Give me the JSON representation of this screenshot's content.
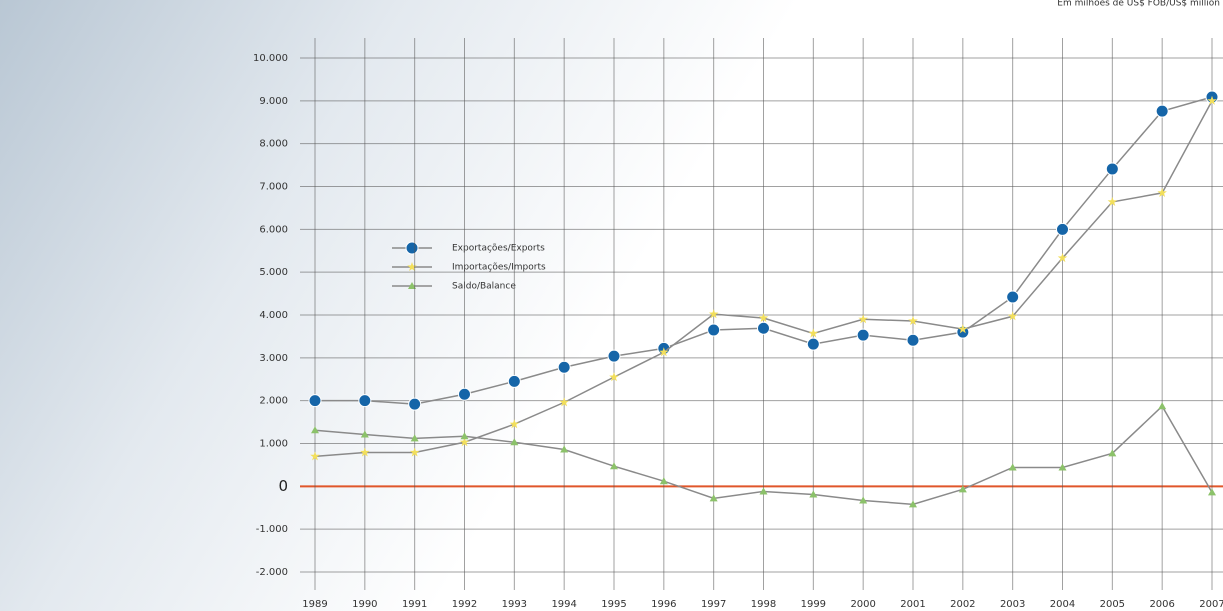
{
  "chart_data": {
    "type": "line",
    "subtitle": "Em milhões de US$ FOB/US$ million",
    "categories": [
      "1989",
      "1990",
      "1991",
      "1992",
      "1993",
      "1994",
      "1995",
      "1996",
      "1997",
      "1998",
      "1999",
      "2000",
      "2001",
      "2002",
      "2003",
      "2004",
      "2005",
      "2006",
      "2007"
    ],
    "series": [
      {
        "name": "Exportações/Exports",
        "color": "#1565a8",
        "marker": "circle",
        "values": [
          2000,
          2000,
          1920,
          2150,
          2450,
          2780,
          3040,
          3220,
          3650,
          3690,
          3320,
          3530,
          3410,
          3600,
          4420,
          6000,
          7410,
          8760,
          9090
        ]
      },
      {
        "name": "Importações/Imports",
        "color": "#f2df5c",
        "marker": "star",
        "values": [
          700,
          790,
          790,
          1030,
          1450,
          1960,
          2550,
          3130,
          4020,
          3930,
          3570,
          3900,
          3860,
          3670,
          3970,
          5330,
          6640,
          6850,
          9000
        ]
      },
      {
        "name": "Saldo/Balance",
        "color": "#8cc26a",
        "marker": "triangle",
        "values": [
          1310,
          1210,
          1120,
          1170,
          1030,
          860,
          470,
          120,
          -280,
          -120,
          -190,
          -330,
          -420,
          -70,
          440,
          440,
          770,
          1870,
          -140
        ]
      }
    ],
    "ylim": [
      -2000,
      10000
    ],
    "yticks": [
      {
        "value": 10000,
        "label": "10.000"
      },
      {
        "value": 9000,
        "label": "9.000"
      },
      {
        "value": 8000,
        "label": "8.000"
      },
      {
        "value": 7000,
        "label": "7.000"
      },
      {
        "value": 6000,
        "label": "6.000"
      },
      {
        "value": 5000,
        "label": "5.000"
      },
      {
        "value": 4000,
        "label": "4.000"
      },
      {
        "value": 3000,
        "label": "3.000"
      },
      {
        "value": 2000,
        "label": "2.000"
      },
      {
        "value": 1000,
        "label": "1.000"
      },
      0,
      {
        "value": -1000,
        "label": "-1.000"
      },
      {
        "value": -2000,
        "label": "-2.000"
      }
    ],
    "grid": true,
    "zero_line_color": "#e0562a"
  }
}
